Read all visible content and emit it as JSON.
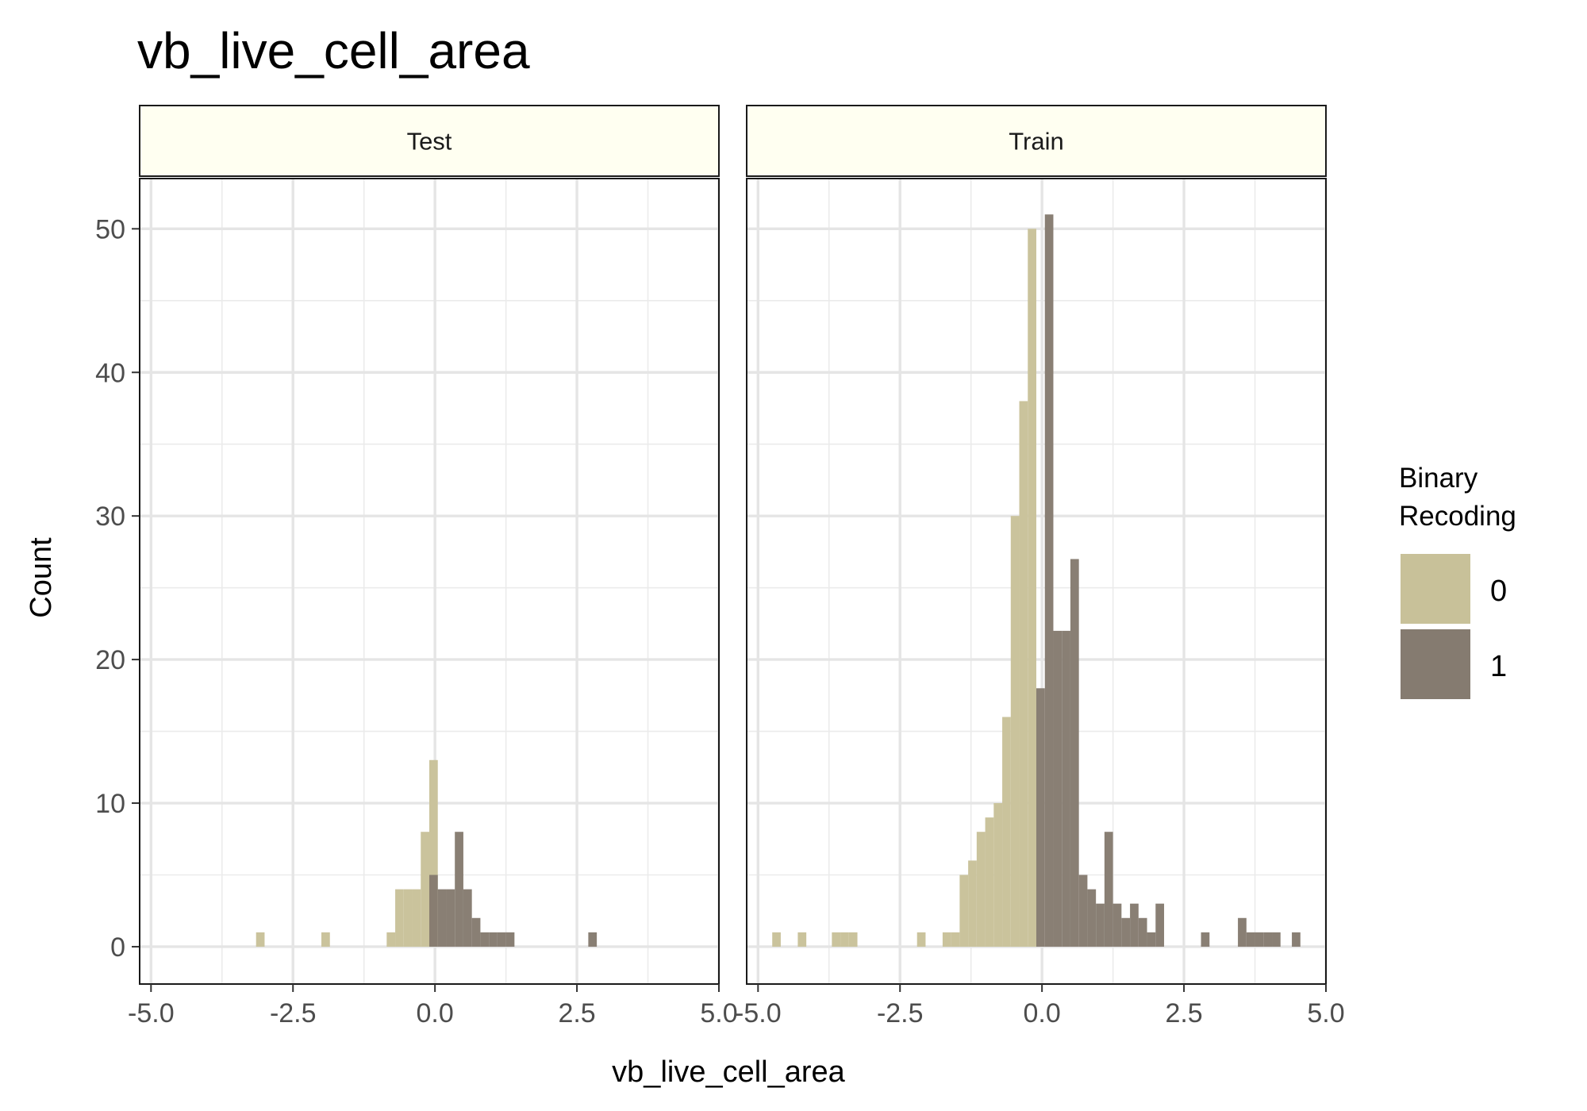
{
  "chart_data": {
    "type": "bar",
    "title": "vb_live_cell_area",
    "xlabel": "vb_live_cell_area",
    "ylabel": "Count",
    "xlim": [
      -5.2,
      5.0
    ],
    "ylim": [
      -2.6,
      53.5
    ],
    "x_ticks": [
      -5.0,
      -2.5,
      0.0,
      2.5,
      5.0
    ],
    "x_tick_labels": [
      "-5.0",
      "-2.5",
      "0.0",
      "2.5",
      "5.0"
    ],
    "y_ticks": [
      0,
      10,
      20,
      30,
      40,
      50
    ],
    "y_tick_labels": [
      "0",
      "10",
      "20",
      "30",
      "40",
      "50"
    ],
    "grid": true,
    "bin_width": 0.15,
    "legend": {
      "title_lines": [
        "Binary",
        "Recoding"
      ],
      "placement": "right",
      "entries": [
        {
          "label": "0",
          "color": "#c8c199"
        },
        {
          "label": "1",
          "color": "#857b70"
        }
      ]
    },
    "panels": [
      {
        "strip_label": "Test",
        "series": [
          {
            "key": "0",
            "color": "#c8c199",
            "bins": [
              {
                "x0": -3.15,
                "x1": -3.0,
                "count": 1
              },
              {
                "x0": -2.0,
                "x1": -1.85,
                "count": 1
              },
              {
                "x0": -0.85,
                "x1": -0.7,
                "count": 1
              },
              {
                "x0": -0.7,
                "x1": -0.55,
                "count": 4
              },
              {
                "x0": -0.55,
                "x1": -0.4,
                "count": 4
              },
              {
                "x0": -0.4,
                "x1": -0.25,
                "count": 4
              },
              {
                "x0": -0.25,
                "x1": -0.1,
                "count": 8
              },
              {
                "x0": -0.1,
                "x1": 0.05,
                "count": 13
              }
            ]
          },
          {
            "key": "1",
            "color": "#857b70",
            "bins": [
              {
                "x0": -0.1,
                "x1": 0.05,
                "count": 5
              },
              {
                "x0": 0.05,
                "x1": 0.2,
                "count": 4
              },
              {
                "x0": 0.2,
                "x1": 0.35,
                "count": 4
              },
              {
                "x0": 0.35,
                "x1": 0.5,
                "count": 8
              },
              {
                "x0": 0.5,
                "x1": 0.65,
                "count": 4
              },
              {
                "x0": 0.65,
                "x1": 0.8,
                "count": 2
              },
              {
                "x0": 0.8,
                "x1": 0.95,
                "count": 1
              },
              {
                "x0": 0.95,
                "x1": 1.1,
                "count": 1
              },
              {
                "x0": 1.1,
                "x1": 1.25,
                "count": 1
              },
              {
                "x0": 1.25,
                "x1": 1.4,
                "count": 1
              },
              {
                "x0": 2.7,
                "x1": 2.85,
                "count": 1
              }
            ]
          }
        ]
      },
      {
        "strip_label": "Train",
        "series": [
          {
            "key": "0",
            "color": "#c8c199",
            "bins": [
              {
                "x0": -4.75,
                "x1": -4.6,
                "count": 1
              },
              {
                "x0": -4.3,
                "x1": -4.15,
                "count": 1
              },
              {
                "x0": -3.7,
                "x1": -3.55,
                "count": 1
              },
              {
                "x0": -3.55,
                "x1": -3.4,
                "count": 1
              },
              {
                "x0": -3.4,
                "x1": -3.25,
                "count": 1
              },
              {
                "x0": -2.2,
                "x1": -2.05,
                "count": 1
              },
              {
                "x0": -1.75,
                "x1": -1.6,
                "count": 1
              },
              {
                "x0": -1.6,
                "x1": -1.45,
                "count": 1
              },
              {
                "x0": -1.45,
                "x1": -1.3,
                "count": 5
              },
              {
                "x0": -1.3,
                "x1": -1.15,
                "count": 6
              },
              {
                "x0": -1.15,
                "x1": -1.0,
                "count": 8
              },
              {
                "x0": -1.0,
                "x1": -0.85,
                "count": 9
              },
              {
                "x0": -0.85,
                "x1": -0.7,
                "count": 10
              },
              {
                "x0": -0.7,
                "x1": -0.55,
                "count": 16
              },
              {
                "x0": -0.55,
                "x1": -0.4,
                "count": 30
              },
              {
                "x0": -0.4,
                "x1": -0.25,
                "count": 38
              },
              {
                "x0": -0.25,
                "x1": -0.1,
                "count": 50
              }
            ]
          },
          {
            "key": "1",
            "color": "#857b70",
            "bins": [
              {
                "x0": -0.1,
                "x1": 0.05,
                "count": 18
              },
              {
                "x0": 0.05,
                "x1": 0.2,
                "count": 51
              },
              {
                "x0": 0.2,
                "x1": 0.35,
                "count": 22
              },
              {
                "x0": 0.35,
                "x1": 0.5,
                "count": 22
              },
              {
                "x0": 0.5,
                "x1": 0.65,
                "count": 27
              },
              {
                "x0": 0.65,
                "x1": 0.8,
                "count": 5
              },
              {
                "x0": 0.8,
                "x1": 0.95,
                "count": 4
              },
              {
                "x0": 0.95,
                "x1": 1.1,
                "count": 3
              },
              {
                "x0": 1.1,
                "x1": 1.25,
                "count": 8
              },
              {
                "x0": 1.25,
                "x1": 1.4,
                "count": 3
              },
              {
                "x0": 1.4,
                "x1": 1.55,
                "count": 2
              },
              {
                "x0": 1.55,
                "x1": 1.7,
                "count": 3
              },
              {
                "x0": 1.7,
                "x1": 1.85,
                "count": 2
              },
              {
                "x0": 1.85,
                "x1": 2.0,
                "count": 1
              },
              {
                "x0": 2.0,
                "x1": 2.15,
                "count": 3
              },
              {
                "x0": 2.8,
                "x1": 2.95,
                "count": 1
              },
              {
                "x0": 3.45,
                "x1": 3.6,
                "count": 2
              },
              {
                "x0": 3.6,
                "x1": 3.75,
                "count": 1
              },
              {
                "x0": 3.75,
                "x1": 3.9,
                "count": 1
              },
              {
                "x0": 3.9,
                "x1": 4.05,
                "count": 1
              },
              {
                "x0": 4.05,
                "x1": 4.2,
                "count": 1
              },
              {
                "x0": 4.4,
                "x1": 4.55,
                "count": 1
              }
            ]
          }
        ]
      }
    ]
  }
}
